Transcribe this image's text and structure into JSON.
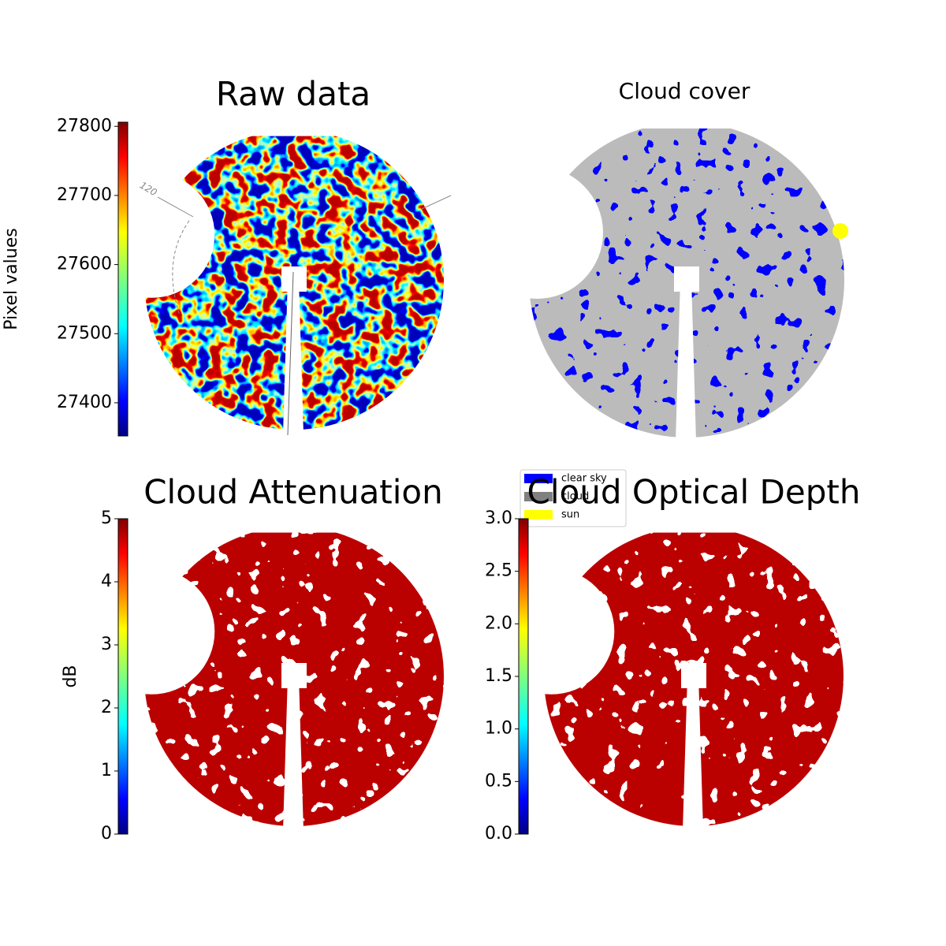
{
  "chart_data": [
    {
      "type": "image",
      "title": "Raw data",
      "colorbar": {
        "label": "Pixel values",
        "colormap": "jet",
        "lim": [
          27352,
          27806
        ],
        "ticks": [
          27400,
          27500,
          27600,
          27700,
          27800
        ]
      },
      "annotation": "120"
    },
    {
      "type": "image",
      "title": "Cloud cover",
      "legend": [
        {
          "name": "clear sky",
          "color": "#0000ff"
        },
        {
          "name": "cloud",
          "color": "#808080"
        },
        {
          "name": "sun",
          "color": "#ffff00"
        }
      ]
    },
    {
      "type": "image",
      "title": "Cloud Attenuation",
      "colorbar": {
        "label": "dB",
        "colormap": "jet",
        "lim": [
          0,
          5
        ],
        "ticks": [
          0,
          1,
          2,
          3,
          4,
          5
        ]
      }
    },
    {
      "type": "image",
      "title": "Cloud Optical Depth",
      "colorbar": {
        "colormap": "jet",
        "lim": [
          0,
          3
        ],
        "ticks": [
          {
            "value": 0,
            "label": "0.0"
          },
          0.5,
          {
            "value": 1,
            "label": "1.0"
          },
          1.5,
          {
            "value": 2,
            "label": "2.0"
          },
          2.5,
          {
            "value": 3,
            "label": "3.0"
          }
        ]
      }
    }
  ]
}
